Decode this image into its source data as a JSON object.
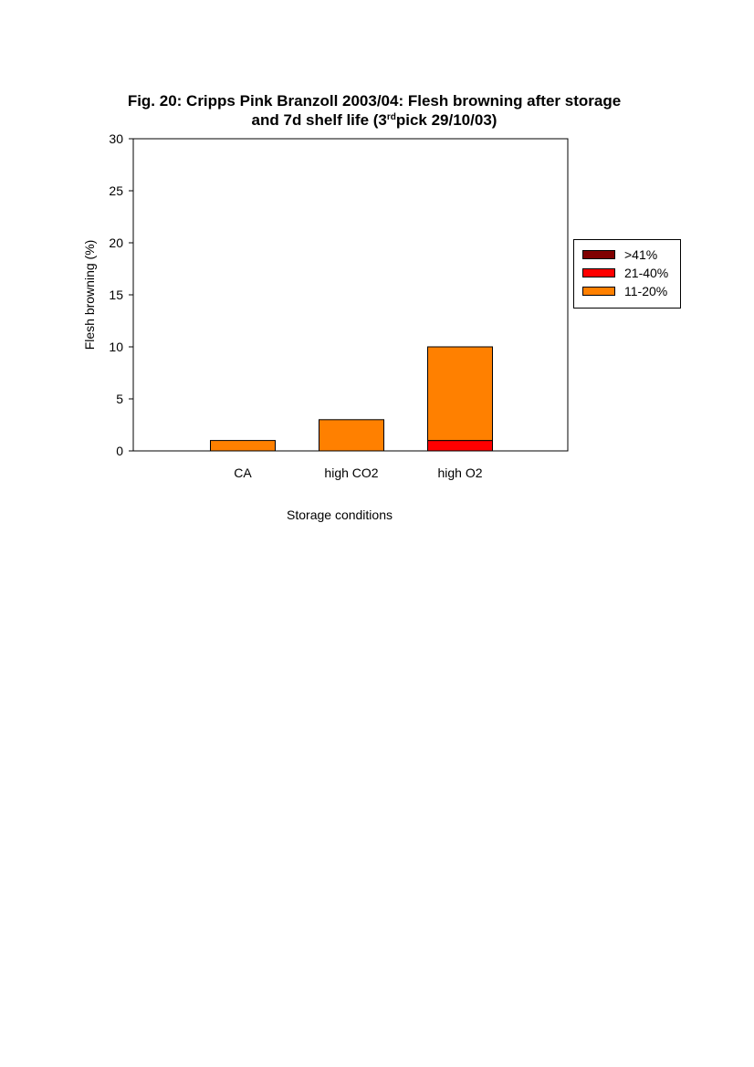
{
  "title": {
    "main": "Fig. 20: Cripps Pink Branzoll 2003/04: Flesh browning after storage",
    "line2_before": "and 7d shelf life (3",
    "line2_sup": "rd",
    "line2_after": "pick 29/10/03)"
  },
  "colors": {
    "gt41": "#800000",
    "r21_40": "#ff0000",
    "r11_20": "#ff8000"
  },
  "chart_data": {
    "type": "bar",
    "stacked": true,
    "title": "Fig. 20: Cripps Pink Branzoll 2003/04: Flesh browning after storage and 7d shelf life (3rd pick 29/10/03)",
    "xlabel": "Storage conditions",
    "ylabel": "Flesh browning (%)",
    "ylim": [
      0,
      30
    ],
    "yticks": [
      0,
      5,
      10,
      15,
      20,
      25,
      30
    ],
    "categories": [
      "CA",
      "high CO2",
      "high O2"
    ],
    "series": [
      {
        "name": "11-20%",
        "color": "#ff8000",
        "values": [
          1,
          3,
          9
        ]
      },
      {
        "name": "21-40%",
        "color": "#ff0000",
        "values": [
          0,
          0,
          1
        ]
      },
      {
        "name": ">41%",
        "color": "#800000",
        "values": [
          0,
          0,
          0
        ]
      }
    ],
    "stack_order": [
      "21-40%",
      "11-20%",
      ">41%"
    ],
    "legend": {
      "position": "right",
      "entries": [
        {
          "label": ">41%",
          "color": "#800000"
        },
        {
          "label": "21-40%",
          "color": "#ff0000"
        },
        {
          "label": "11-20%",
          "color": "#ff8000"
        }
      ]
    },
    "grid": false
  }
}
